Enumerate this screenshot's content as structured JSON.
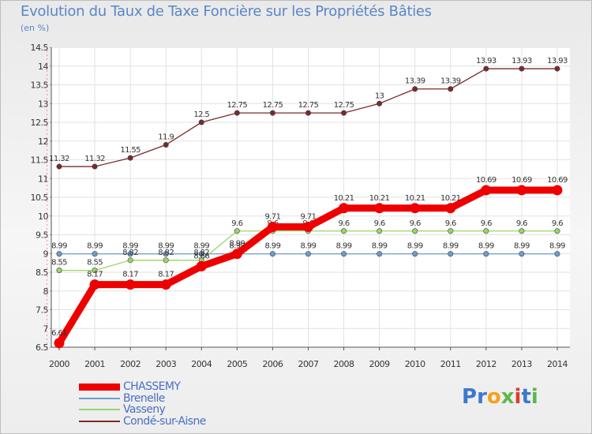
{
  "chart_data": {
    "type": "line",
    "title": "Evolution du Taux de Taxe Foncière sur les Propriétés Bâties",
    "subtitle": "(en %)",
    "x": [
      "2000",
      "2001",
      "2002",
      "2003",
      "2004",
      "2005",
      "2006",
      "2007",
      "2008",
      "2009",
      "2010",
      "2011",
      "2012",
      "2013",
      "2014"
    ],
    "ylim": [
      6.5,
      14.5
    ],
    "yticks": [
      "6.5",
      "7",
      "7.5",
      "8",
      "8.5",
      "9",
      "9.5",
      "10",
      "10.5",
      "11",
      "11.5",
      "12",
      "12.5",
      "13",
      "13.5",
      "14",
      "14.5"
    ],
    "series": [
      {
        "name": "Condé-sur-Aisne",
        "color": "#7a2a2a",
        "values": [
          11.32,
          11.32,
          11.55,
          11.9,
          12.5,
          12.75,
          12.75,
          12.75,
          12.75,
          13,
          13.39,
          13.39,
          13.93,
          13.93,
          13.93
        ],
        "labels": [
          "11.32",
          "11.32",
          "11.55",
          "11.9",
          "12.5",
          "12.75",
          "12.75",
          "12.75",
          "12.75",
          "13",
          "13.39",
          "13.39",
          "13.93",
          "13.93",
          "13.93"
        ]
      },
      {
        "name": "Brenelle",
        "color": "#6e9ccc",
        "values": [
          8.99,
          8.99,
          8.99,
          8.99,
          8.99,
          8.99,
          8.99,
          8.99,
          8.99,
          8.99,
          8.99,
          8.99,
          8.99,
          8.99,
          8.99
        ],
        "labels": [
          "8.99",
          "8.99",
          "8.99",
          "8.99",
          "8.99",
          "8.99",
          "8.99",
          "8.99",
          "8.99",
          "8.99",
          "8.99",
          "8.99",
          "8.99",
          "8.99",
          "8.99"
        ]
      },
      {
        "name": "Vasseny",
        "color": "#9ad66a",
        "values": [
          8.55,
          8.55,
          8.82,
          8.82,
          8.82,
          9.6,
          9.6,
          9.6,
          9.6,
          9.6,
          9.6,
          9.6,
          9.6,
          9.6,
          9.6
        ],
        "labels": [
          "8.55",
          "8.55",
          "8.82",
          "8.82",
          "8.82",
          "9.6",
          "9.6",
          "9.6",
          "9.6",
          "9.6",
          "9.6",
          "9.6",
          "9.6",
          "9.6",
          "9.6"
        ]
      },
      {
        "name": "CHASSEMY",
        "color": "#ee0000",
        "values": [
          6.61,
          8.17,
          8.17,
          8.17,
          8.66,
          8.99,
          9.71,
          9.71,
          10.21,
          10.21,
          10.21,
          10.21,
          10.69,
          10.69,
          10.69
        ],
        "labels": [
          "6.61",
          "8.17",
          "8.17",
          "8.17",
          "8.66",
          "8.99",
          "9.71",
          "9.71",
          "10.21",
          "10.21",
          "10.21",
          "10.21",
          "10.69",
          "10.69",
          "10.69"
        ]
      }
    ]
  },
  "legend": [
    {
      "name": "CHASSEMY",
      "color": "#ee0000"
    },
    {
      "name": "Brenelle",
      "color": "#6e9ccc"
    },
    {
      "name": "Vasseny",
      "color": "#9ad66a"
    },
    {
      "name": "Condé-sur-Aisne",
      "color": "#7a2a2a"
    }
  ],
  "brand": {
    "letters": [
      "P",
      "r",
      "o",
      "x",
      "i",
      "t",
      "i"
    ],
    "colors": [
      "#3b78d0",
      "#3b78d0",
      "#f2a31b",
      "#5bb84a",
      "#e23a2e",
      "#3b78d0",
      "#5bb84a"
    ]
  }
}
